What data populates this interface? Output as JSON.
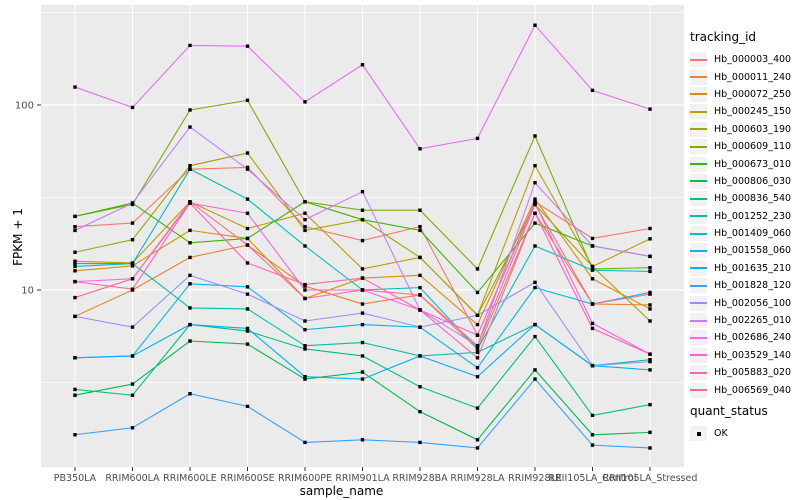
{
  "figure": {
    "panel_background": "#EBEBEB",
    "grid_color": "#FFFFFF",
    "tick_label_color": "#4D4D4D",
    "tick_mark_color": "#333333",
    "marker_color": "#000000"
  },
  "chart_data": {
    "type": "line",
    "title": "",
    "xlabel": "sample_name",
    "ylabel": "FPKM + 1",
    "y_scale": "log10",
    "ylim": [
      1.1,
      347
    ],
    "y_ticks": [
      {
        "value": 100,
        "label": "100"
      },
      {
        "value": 10,
        "label": "10"
      }
    ],
    "y_minor_ticks": [
      3.162,
      31.62,
      316.2
    ],
    "grid": true,
    "legend": {
      "title": "tracking_id",
      "position": "right"
    },
    "quant_legend": {
      "title": "quant_status",
      "items": [
        {
          "label": "OK",
          "marker": "black-square"
        }
      ]
    },
    "categories": [
      "PB350LA",
      "RRIM600LA",
      "RRIM600LE",
      "RRIM600SE",
      "RRIM600PE",
      "RRIM901LA",
      "RRIM928BA",
      "RRIM928LA",
      "RRIM928LE",
      "RRII105LA_Control",
      "RRII105LA_Stressed"
    ],
    "series": [
      {
        "name": "Hb_000003_400",
        "color": "#F8766D",
        "values": [
          22,
          23,
          45,
          46,
          22,
          18.5,
          22,
          5.7,
          30,
          19,
          21.5
        ]
      },
      {
        "name": "Hb_000011_240",
        "color": "#EA8331",
        "values": [
          7.2,
          10,
          15,
          17.5,
          10.5,
          8.4,
          9.4,
          4.8,
          26,
          8.4,
          8.3
        ]
      },
      {
        "name": "Hb_000072_250",
        "color": "#D89000",
        "values": [
          12.7,
          13.5,
          21,
          19,
          9.0,
          11.6,
          12,
          6.5,
          31,
          11.5,
          7.9
        ]
      },
      {
        "name": "Hb_000245_150",
        "color": "#C09B00",
        "values": [
          14.3,
          14,
          30,
          21.5,
          26,
          13,
          15,
          7.3,
          47,
          13.4,
          18.9
        ]
      },
      {
        "name": "Hb_000603_190",
        "color": "#A3A500",
        "values": [
          16,
          18.7,
          47,
          55,
          21,
          24,
          15,
          7.3,
          29,
          13.4,
          6.8
        ]
      },
      {
        "name": "Hb_000609_110",
        "color": "#7CAE00",
        "values": [
          25,
          29,
          94,
          106,
          30,
          27,
          27,
          13,
          68,
          13,
          13.2
        ]
      },
      {
        "name": "Hb_000673_010",
        "color": "#39B600",
        "values": [
          25,
          29.5,
          18,
          19,
          30,
          24,
          21,
          9.7,
          23,
          17.3,
          15.2
        ]
      },
      {
        "name": "Hb_000806_030",
        "color": "#00BB4E",
        "values": [
          2.7,
          3.1,
          5.3,
          5.1,
          3.3,
          3.6,
          2.2,
          1.55,
          3.7,
          1.65,
          1.7
        ]
      },
      {
        "name": "Hb_000836_540",
        "color": "#00BF7D",
        "values": [
          2.9,
          2.7,
          6.5,
          6.0,
          4.8,
          4.4,
          3.0,
          2.3,
          5.6,
          2.1,
          2.4
        ]
      },
      {
        "name": "Hb_001252_230",
        "color": "#00C1A3",
        "values": [
          13.9,
          13.9,
          8.0,
          7.9,
          5.0,
          5.2,
          4.4,
          4.6,
          6.5,
          3.9,
          4.2
        ]
      },
      {
        "name": "Hb_001409_060",
        "color": "#00BFC4",
        "values": [
          13.4,
          13.9,
          45,
          31,
          17.3,
          10,
          10.3,
          4.8,
          17.3,
          12.8,
          12.6
        ]
      },
      {
        "name": "Hb_001558_060",
        "color": "#00BAE0",
        "values": [
          4.3,
          4.4,
          10.8,
          10.4,
          6.1,
          6.5,
          6.3,
          3.8,
          10.3,
          8.4,
          9.7
        ]
      },
      {
        "name": "Hb_001635_210",
        "color": "#00B0F6",
        "values": [
          4.3,
          4.4,
          6.5,
          6.2,
          3.4,
          3.3,
          4.4,
          3.4,
          6.5,
          3.9,
          3.7
        ]
      },
      {
        "name": "Hb_001828_120",
        "color": "#35A2FF",
        "values": [
          1.65,
          1.8,
          2.75,
          2.35,
          1.5,
          1.55,
          1.5,
          1.4,
          3.3,
          1.45,
          1.4
        ]
      },
      {
        "name": "Hb_002056_100",
        "color": "#9590FF",
        "values": [
          7.2,
          6.3,
          12,
          9.5,
          6.8,
          7.5,
          6.3,
          7.3,
          11,
          3.9,
          4.1
        ]
      },
      {
        "name": "Hb_002265_010",
        "color": "#C77CFF",
        "values": [
          21,
          29.5,
          76,
          45,
          24,
          34,
          7.8,
          5.0,
          38,
          17.3,
          15.2
        ]
      },
      {
        "name": "Hb_002686_240",
        "color": "#E76BF3",
        "values": [
          125,
          97,
          210,
          208,
          104,
          165,
          58,
          66,
          270,
          120,
          95
        ]
      },
      {
        "name": "Hb_003529_140",
        "color": "#FA62DB",
        "values": [
          11.1,
          11.5,
          29.5,
          26,
          10,
          10,
          7.8,
          5.7,
          29.5,
          6.6,
          4.5
        ]
      },
      {
        "name": "Hb_005883_020",
        "color": "#FF62BC",
        "values": [
          11.1,
          10.1,
          29.5,
          14,
          10.7,
          11.6,
          7.8,
          4.3,
          26,
          6.2,
          4.5
        ]
      },
      {
        "name": "Hb_006569_040",
        "color": "#FF6A98",
        "values": [
          9.1,
          11.5,
          30,
          17.5,
          9.0,
          10,
          9.4,
          5.0,
          29,
          8.4,
          9.5
        ]
      }
    ]
  }
}
